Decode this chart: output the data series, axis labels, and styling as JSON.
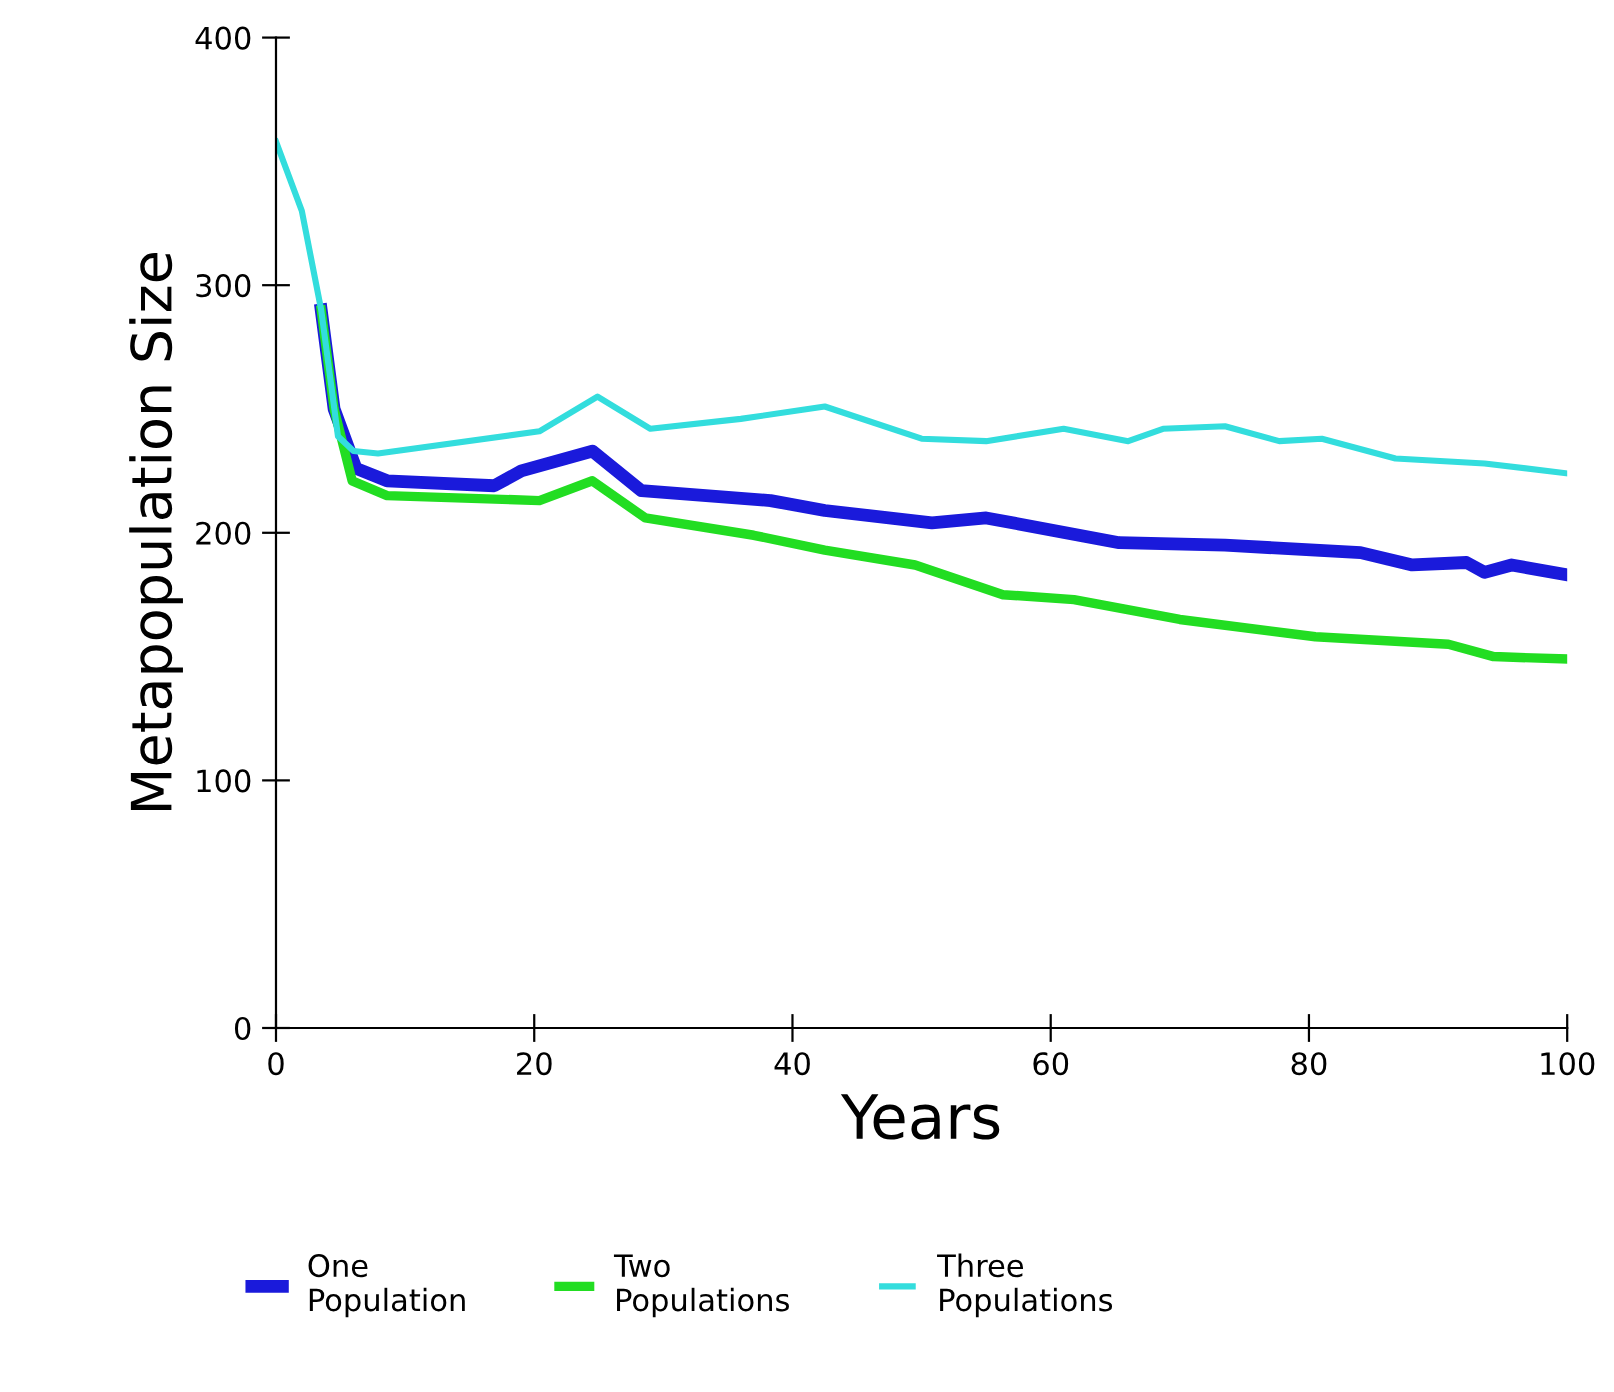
{
  "chart_data": {
    "type": "line",
    "xlabel": "Years",
    "ylabel": "Metapopulation Size",
    "xlim": [
      0,
      100
    ],
    "ylim": [
      0,
      400
    ],
    "xticks": [
      0,
      20,
      40,
      60,
      80,
      100
    ],
    "yticks": [
      0,
      100,
      200,
      300,
      400
    ],
    "grid": false,
    "legend": "bottom",
    "marker": "none",
    "line_style": "solid",
    "series": [
      {
        "name": "One\nPopulation",
        "color": "#1a1adb",
        "x": [
          3.5,
          4.5,
          6.2,
          8.6,
          16.9,
          19,
          24.5,
          28.3,
          38.3,
          42.5,
          50.8,
          55,
          65.3,
          73.5,
          84,
          88,
          92.2,
          93.6,
          95.7,
          100
        ],
        "values": [
          290,
          250,
          226,
          221,
          219,
          225,
          233,
          217,
          213,
          209,
          204,
          206,
          196,
          195,
          192,
          187,
          188,
          184,
          187,
          183
        ]
      },
      {
        "name": "Two\nPopulations",
        "color": "#22dd22",
        "x": [
          3.5,
          4.5,
          5.9,
          8.6,
          20.4,
          24.5,
          28.6,
          37,
          42.5,
          49.5,
          56.3,
          61.8,
          70,
          80.5,
          90.8,
          94.3,
          100
        ],
        "values": [
          290,
          250,
          221,
          215,
          213,
          221,
          206,
          199,
          193,
          187,
          175,
          173,
          165,
          158,
          155,
          150,
          149
        ]
      },
      {
        "name": "Three\nPopulations",
        "color": "#33dddd",
        "x": [
          0,
          2,
          3.5,
          4.8,
          6,
          7.9,
          20.4,
          24.9,
          29,
          36,
          42.5,
          50,
          55,
          61,
          66,
          68.7,
          73.5,
          77.7,
          81,
          86.7,
          93.6,
          100
        ],
        "values": [
          358,
          330,
          290,
          239,
          233,
          232,
          241,
          255,
          242,
          246,
          251,
          238,
          237,
          242,
          237,
          242,
          243,
          237,
          238,
          230,
          228,
          224
        ]
      }
    ]
  }
}
